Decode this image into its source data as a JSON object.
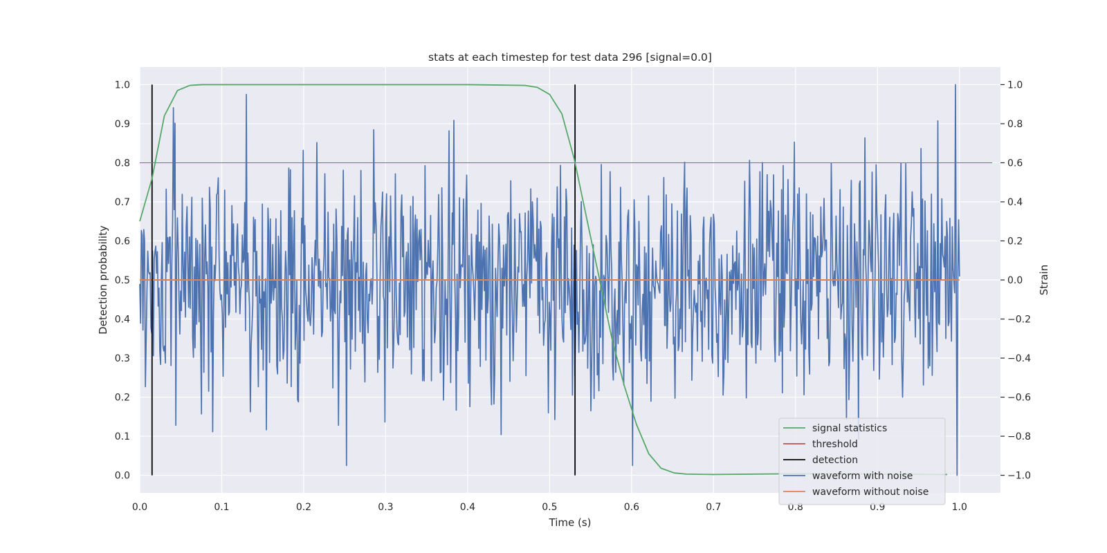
{
  "chart_data": {
    "type": "line",
    "title": "stats at each timestep for test data 296 [signal=0.0]",
    "xlabel": "Time (s)",
    "ylabel": "Detection probability",
    "y2label": "Strain",
    "xlim": [
      0.0,
      1.05
    ],
    "ylim": [
      -0.045,
      1.045
    ],
    "y2lim": [
      -1.09,
      1.09
    ],
    "xticks": [
      "0.0",
      "0.1",
      "0.2",
      "0.3",
      "0.4",
      "0.5",
      "0.6",
      "0.7",
      "0.8",
      "0.9",
      "1.0"
    ],
    "yticks": [
      "0.0",
      "0.1",
      "0.2",
      "0.3",
      "0.4",
      "0.5",
      "0.6",
      "0.7",
      "0.8",
      "0.9",
      "1.0"
    ],
    "y2ticks": [
      "−1.0",
      "−0.8",
      "−0.6",
      "−0.4",
      "−0.2",
      "0.0",
      "0.2",
      "0.4",
      "0.6",
      "0.8",
      "1.0"
    ],
    "grid": true,
    "legend_position": "lower-right",
    "series": [
      {
        "name": "signal statistics",
        "axis": "left",
        "color": "#55a868",
        "x": [
          0.0,
          0.015,
          0.03,
          0.046,
          0.061,
          0.076,
          0.1,
          0.2,
          0.3,
          0.4,
          0.47,
          0.485,
          0.5,
          0.515,
          0.53,
          0.545,
          0.561,
          0.576,
          0.591,
          0.606,
          0.621,
          0.636,
          0.652,
          0.667,
          0.7,
          0.8,
          0.9,
          0.985
        ],
        "values": [
          0.65,
          0.76,
          0.92,
          0.985,
          0.998,
          1.0,
          1.0,
          1.0,
          1.0,
          1.0,
          0.998,
          0.993,
          0.975,
          0.925,
          0.81,
          0.66,
          0.5,
          0.35,
          0.23,
          0.13,
          0.055,
          0.018,
          0.006,
          0.003,
          0.002,
          0.004,
          0.003,
          0.002
        ]
      },
      {
        "name": "threshold",
        "axis": "left",
        "color": "#c44e52",
        "x": [
          0.0,
          1.04
        ],
        "values": [
          0.8,
          0.8
        ]
      },
      {
        "name": "detection",
        "axis": "left",
        "color": "#000000",
        "segments": [
          {
            "x": 0.015,
            "y": [
              0.0,
              1.0
            ]
          },
          {
            "x": 0.531,
            "y": [
              0.0,
              1.0
            ]
          }
        ]
      },
      {
        "name": "waveform with noise",
        "axis": "right",
        "color": "#4c72b0",
        "points": 1024,
        "x_range": [
          0.0,
          1.0
        ],
        "value_range": [
          -1.0,
          1.0
        ],
        "seed": 296
      },
      {
        "name": "waveform without noise",
        "axis": "right",
        "color": "#dd8452",
        "x": [
          0.0,
          1.0
        ],
        "values": [
          0.0,
          0.0
        ]
      }
    ]
  },
  "colors": {
    "plot_background": "#eaeaf2",
    "grid": "#ffffff",
    "text": "#262626",
    "legend_border": "#cccccc"
  }
}
